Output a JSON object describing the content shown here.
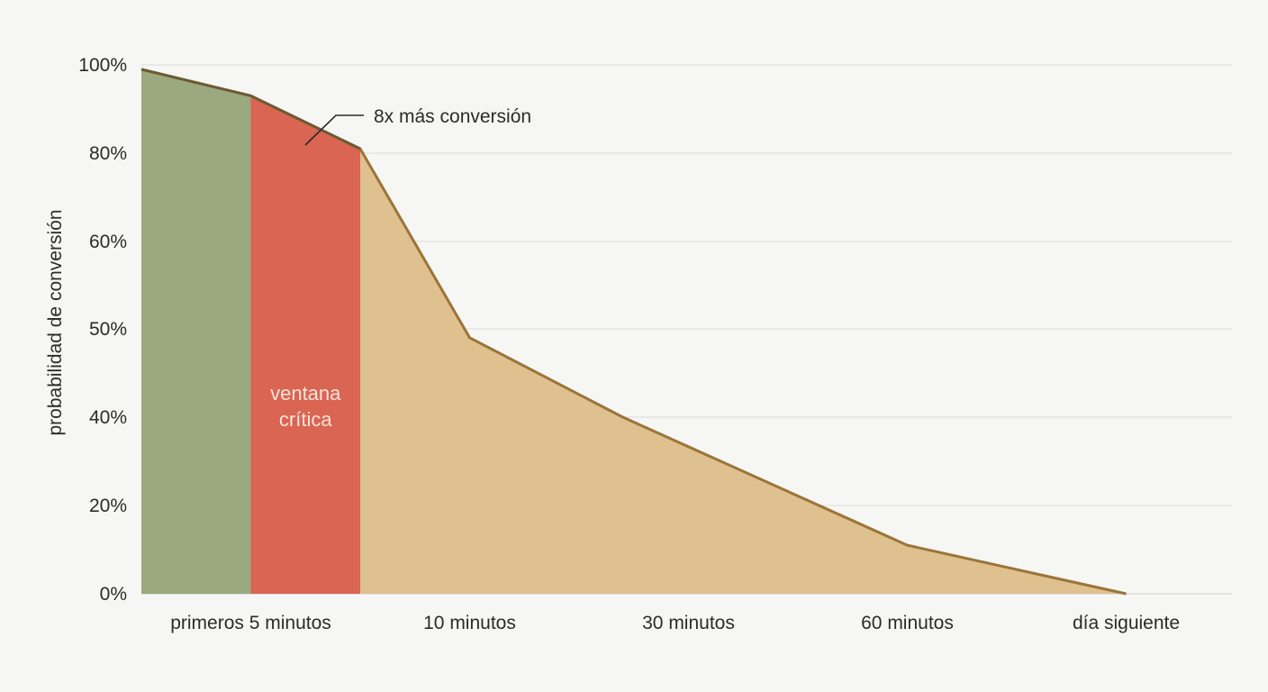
{
  "chart_data": {
    "type": "area",
    "ylabel": "probabilidad de conversión",
    "xlabel": "",
    "yticks": [
      {
        "value": 0,
        "label": "0%"
      },
      {
        "value": 20,
        "label": "20%"
      },
      {
        "value": 40,
        "label": "40%"
      },
      {
        "value": 50,
        "label": "50%"
      },
      {
        "value": 60,
        "label": "60%"
      },
      {
        "value": 80,
        "label": "80%"
      },
      {
        "value": 100,
        "label": "100%"
      }
    ],
    "categories": [
      "primeros 5 minutos",
      "10 minutos",
      "30 minutos",
      "60 minutos",
      "día siguiente"
    ],
    "points": [
      {
        "x": 0.0,
        "y": 99
      },
      {
        "x": 0.5,
        "y": 93
      },
      {
        "x": 1.0,
        "y": 81
      },
      {
        "x": 1.5,
        "y": 49
      },
      {
        "x": 2.2,
        "y": 40
      },
      {
        "x": 3.5,
        "y": 11
      },
      {
        "x": 4.5,
        "y": 0
      }
    ],
    "regions": [
      {
        "name": "green",
        "x_start": 0.0,
        "x_end": 0.5,
        "color": "#9aa97e",
        "label_lines": []
      },
      {
        "name": "critical",
        "x_start": 0.5,
        "x_end": 1.0,
        "color": "#d96552",
        "label_lines": [
          "ventana",
          "crítica"
        ]
      },
      {
        "name": "rest",
        "x_start": 1.0,
        "x_end": 4.5,
        "color": "#dfc08f",
        "label_lines": []
      }
    ],
    "line_color": "#9b7438",
    "grid": true,
    "annotation": {
      "text": "8x más conversión",
      "x": 0.75,
      "y": 87
    }
  }
}
